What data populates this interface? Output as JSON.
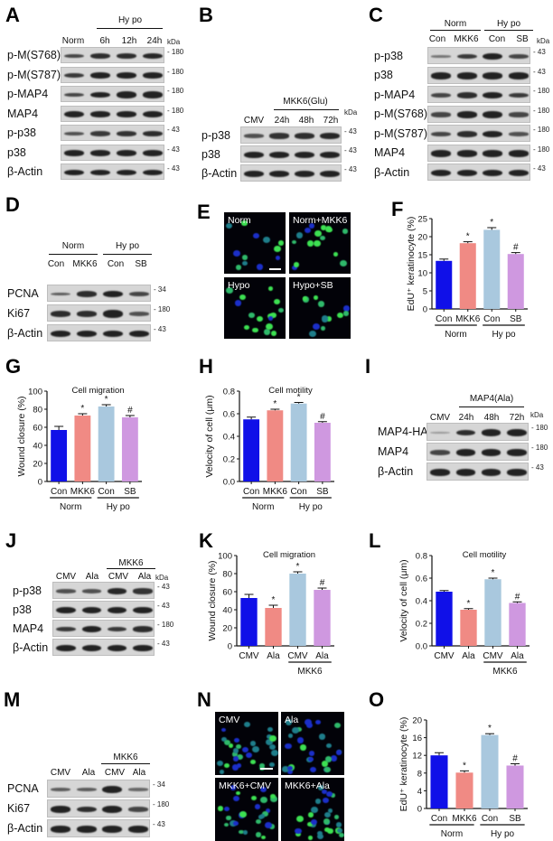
{
  "figure": {
    "panels": {
      "A": {
        "label": "A",
        "group": "Hy po",
        "lanes": [
          "Norm",
          "6h",
          "12h",
          "24h"
        ],
        "kda_header": "kDa",
        "rows": [
          {
            "name": "p-M(S768)",
            "kda": "180"
          },
          {
            "name": "p-M(S787)",
            "kda": "180"
          },
          {
            "name": "p-MAP4",
            "kda": "180"
          },
          {
            "name": "MAP4",
            "kda": "180"
          },
          {
            "name": "p-p38",
            "kda": "43"
          },
          {
            "name": "p38",
            "kda": "43"
          },
          {
            "name": "β-Actin",
            "kda": "43"
          }
        ]
      },
      "B": {
        "label": "B",
        "group": "MKK6(Glu)",
        "lanes": [
          "CMV",
          "24h",
          "48h",
          "72h"
        ],
        "kda_header": "kDa",
        "rows": [
          {
            "name": "p-p38",
            "kda": "43"
          },
          {
            "name": "p38",
            "kda": "43"
          },
          {
            "name": "β-Actin",
            "kda": "43"
          }
        ]
      },
      "C": {
        "label": "C",
        "groups": [
          "Norm",
          "Hy po"
        ],
        "lanes": [
          "Con",
          "MKK6",
          "Con",
          "SB"
        ],
        "kda_header": "kDa",
        "rows": [
          {
            "name": "p-p38",
            "kda": "43"
          },
          {
            "name": "p38",
            "kda": "43"
          },
          {
            "name": "p-MAP4",
            "kda": "180"
          },
          {
            "name": "p-M(S768)",
            "kda": "180"
          },
          {
            "name": "p-M(S787)",
            "kda": "180"
          },
          {
            "name": "MAP4",
            "kda": "180"
          },
          {
            "name": "β-Actin",
            "kda": "43"
          }
        ]
      },
      "D": {
        "label": "D",
        "groups": [
          "Norm",
          "Hy po"
        ],
        "lanes": [
          "Con",
          "MKK6",
          "Con",
          "SB"
        ],
        "rows": [
          {
            "name": "PCNA",
            "kda": "34"
          },
          {
            "name": "Ki67",
            "kda": "180"
          },
          {
            "name": "β-Actin",
            "kda": "43"
          }
        ]
      },
      "E": {
        "label": "E",
        "images": [
          "Norm",
          "Norm+MKK6",
          "Hypo",
          "Hypo+SB"
        ]
      },
      "I": {
        "label": "I",
        "group": "MAP4(Ala)",
        "lanes": [
          "CMV",
          "24h",
          "48h",
          "72h"
        ],
        "kda_header": "kDa",
        "rows": [
          {
            "name": "MAP4-HA",
            "kda": "180"
          },
          {
            "name": "MAP4",
            "kda": "180"
          },
          {
            "name": "β-Actin",
            "kda": "43"
          }
        ]
      },
      "J": {
        "label": "J",
        "group": "MKK6",
        "lanes": [
          "CMV",
          "Ala",
          "CMV",
          "Ala"
        ],
        "kda_header": "kDa",
        "rows": [
          {
            "name": "p-p38",
            "kda": "43"
          },
          {
            "name": "p38",
            "kda": "43"
          },
          {
            "name": "MAP4",
            "kda": "180"
          },
          {
            "name": "β-Actin",
            "kda": "43"
          }
        ]
      },
      "M": {
        "label": "M",
        "group": "MKK6",
        "lanes": [
          "CMV",
          "Ala",
          "CMV",
          "Ala"
        ],
        "rows": [
          {
            "name": "PCNA",
            "kda": "34"
          },
          {
            "name": "Ki67",
            "kda": "180"
          },
          {
            "name": "β-Actin",
            "kda": "43"
          }
        ]
      },
      "N": {
        "label": "N",
        "images": [
          "CMV",
          "Ala",
          "MKK6+CMV",
          "MKK6+Ala"
        ]
      }
    },
    "bar_colors": [
      "#1010e8",
      "#f08a84",
      "#a9c8de",
      "#cf98e0"
    ]
  },
  "chart_data": [
    {
      "panel": "F",
      "type": "bar",
      "title": "",
      "categories": [
        "Con",
        "MKK6",
        "Con",
        "SB"
      ],
      "groups": [
        {
          "name": "Norm",
          "span": [
            0,
            1
          ]
        },
        {
          "name": "Hy po",
          "span": [
            2,
            3
          ]
        }
      ],
      "values": [
        13.3,
        18.2,
        21.9,
        15.2
      ],
      "errors": [
        0.5,
        0.4,
        0.6,
        0.4
      ],
      "markers": [
        "",
        "*",
        "*",
        "#"
      ],
      "ylabel": "EdU⁺ keratinocyte (%)",
      "xlabel": "",
      "ylim": [
        0,
        25
      ],
      "yticks": [
        "0",
        "5",
        "10",
        "15",
        "20",
        "25"
      ],
      "grid": false
    },
    {
      "panel": "G",
      "type": "bar",
      "title": "Cell migration",
      "categories": [
        "Con",
        "MKK6",
        "Con",
        "SB"
      ],
      "groups": [
        {
          "name": "Norm",
          "span": [
            0,
            1
          ]
        },
        {
          "name": "Hy po",
          "span": [
            2,
            3
          ]
        }
      ],
      "values": [
        57,
        73,
        83,
        71
      ],
      "errors": [
        4,
        2,
        2,
        2
      ],
      "markers": [
        "",
        "*",
        "*",
        "#"
      ],
      "ylabel": "Wound closure (%)",
      "xlabel": "",
      "ylim": [
        0,
        100
      ],
      "yticks": [
        "0",
        "20",
        "40",
        "60",
        "80",
        "100"
      ],
      "grid": false
    },
    {
      "panel": "H",
      "type": "bar",
      "title": "Cell motility",
      "categories": [
        "Con",
        "MKK6",
        "Con",
        "SB"
      ],
      "groups": [
        {
          "name": "Norm",
          "span": [
            0,
            1
          ]
        },
        {
          "name": "Hy po",
          "span": [
            2,
            3
          ]
        }
      ],
      "values": [
        0.55,
        0.63,
        0.69,
        0.52
      ],
      "errors": [
        0.02,
        0.01,
        0.01,
        0.01
      ],
      "markers": [
        "",
        "*",
        "*",
        "#"
      ],
      "ylabel": "Velocity of cell (μm)",
      "xlabel": "",
      "ylim": [
        0,
        0.8
      ],
      "yticks": [
        "0.0",
        "0.2",
        "0.4",
        "0.6",
        "0.8"
      ],
      "grid": false
    },
    {
      "panel": "K",
      "type": "bar",
      "title": "Cell migration",
      "categories": [
        "CMV",
        "Ala",
        "CMV",
        "Ala"
      ],
      "groups": [
        {
          "name": "MKK6",
          "span": [
            2,
            3
          ]
        }
      ],
      "values": [
        53,
        42,
        80,
        62
      ],
      "errors": [
        4,
        3,
        2,
        2
      ],
      "markers": [
        "",
        "*",
        "*",
        "#"
      ],
      "ylabel": "Wound closure (%)",
      "xlabel": "",
      "ylim": [
        0,
        100
      ],
      "yticks": [
        "0",
        "20",
        "40",
        "60",
        "80",
        "100"
      ],
      "grid": false
    },
    {
      "panel": "L",
      "type": "bar",
      "title": "Cell motility",
      "categories": [
        "CMV",
        "Ala",
        "CMV",
        "Ala"
      ],
      "groups": [
        {
          "name": "MKK6",
          "span": [
            2,
            3
          ]
        }
      ],
      "values": [
        0.48,
        0.32,
        0.59,
        0.38
      ],
      "errors": [
        0.01,
        0.01,
        0.01,
        0.01
      ],
      "markers": [
        "",
        "*",
        "*",
        "#"
      ],
      "ylabel": "Velocity of cell (μm)",
      "xlabel": "",
      "ylim": [
        0,
        0.8
      ],
      "yticks": [
        "0.0",
        "0.2",
        "0.4",
        "0.6",
        "0.8"
      ],
      "grid": false
    },
    {
      "panel": "O",
      "type": "bar",
      "title": "",
      "categories": [
        "Con",
        "MKK6",
        "Con",
        "SB"
      ],
      "groups": [
        {
          "name": "Norm",
          "span": [
            0,
            1
          ]
        },
        {
          "name": "Hy po",
          "span": [
            2,
            3
          ]
        }
      ],
      "values": [
        12.0,
        8.1,
        16.6,
        9.7
      ],
      "errors": [
        0.6,
        0.4,
        0.3,
        0.4
      ],
      "markers": [
        "",
        "*",
        "*",
        "#"
      ],
      "ylabel": "EdU⁺ keratinocyte (%)",
      "xlabel": "",
      "ylim": [
        0,
        20
      ],
      "yticks": [
        "0",
        "4",
        "8",
        "12",
        "16",
        "20"
      ],
      "grid": false
    }
  ]
}
